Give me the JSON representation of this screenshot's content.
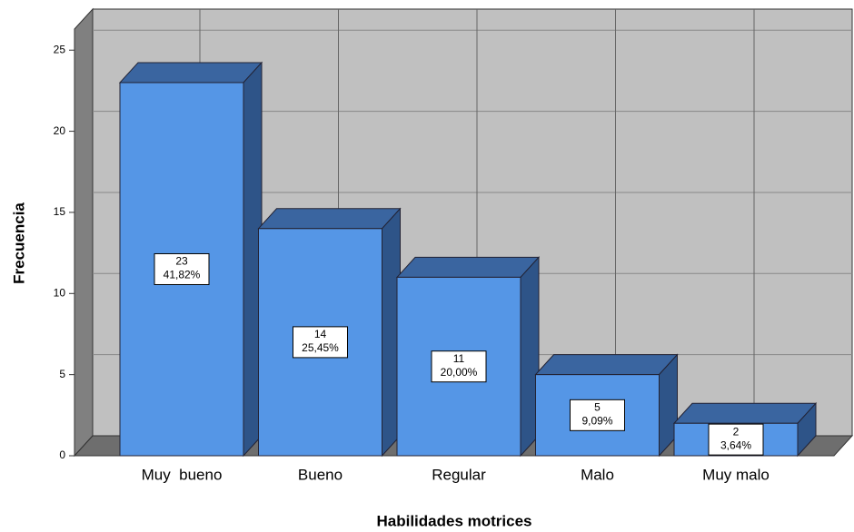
{
  "chart_data": {
    "type": "bar3d",
    "categories": [
      "Muy  bueno",
      "Bueno",
      "Regular",
      "Malo",
      "Muy malo"
    ],
    "values": [
      23,
      14,
      11,
      5,
      2
    ],
    "percent_labels": [
      "41,82%",
      "25,45%",
      "20,00%",
      "9,09%",
      "3,64%"
    ],
    "color": "#5596e6",
    "ylim": [
      0,
      26.3
    ],
    "yticks": [
      0,
      5,
      10,
      15,
      20,
      25
    ],
    "grid": true,
    "ylabel": "Frecuencia",
    "xlabel": "Habilidades motrices"
  }
}
